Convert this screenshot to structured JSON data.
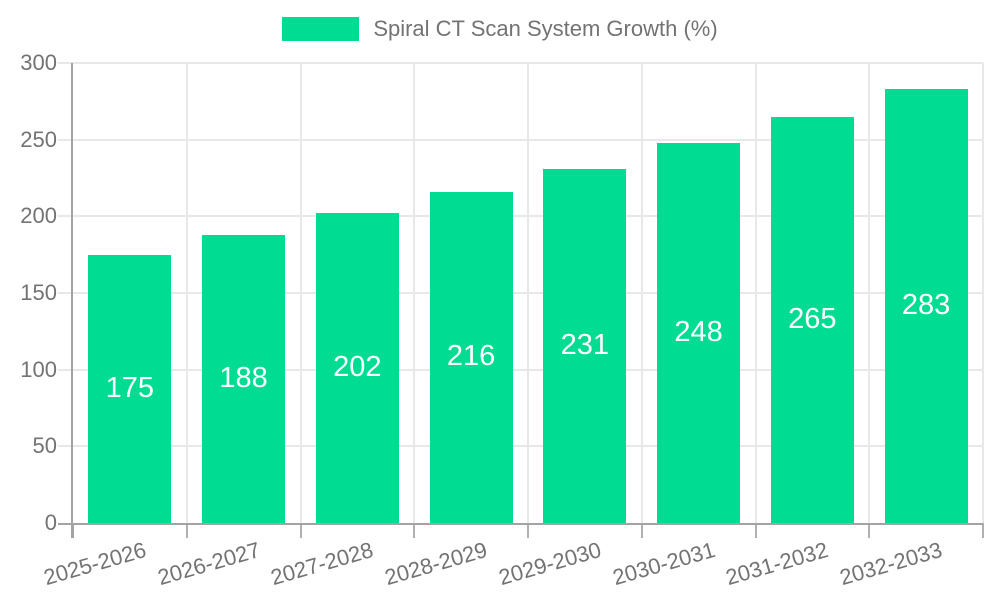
{
  "legend": {
    "label": "Spiral CT Scan System Growth (%)"
  },
  "colors": {
    "bar": "#00DC92",
    "axis_text": "#737373",
    "grid": "#e8e8e8",
    "axis_line": "#a3a3a3",
    "tick": "#b0b0b0",
    "value_label": "#ffffff",
    "background": "#ffffff"
  },
  "chart_data": {
    "type": "bar",
    "title": "",
    "legend_label": "Spiral CT Scan System Growth (%)",
    "legend_position": "top-center",
    "categories": [
      "2025-2026",
      "2026-2027",
      "2027-2028",
      "2028-2029",
      "2029-2030",
      "2030-2031",
      "2031-2032",
      "2032-2033"
    ],
    "values": [
      175,
      188,
      202,
      216,
      231,
      248,
      265,
      283
    ],
    "xlabel": "",
    "ylabel": "",
    "ylim": [
      0,
      300
    ],
    "yticks": [
      0,
      50,
      100,
      150,
      200,
      250,
      300
    ],
    "grid": "on",
    "bar_value_labels": "inside-center",
    "x_label_rotation_deg": -16
  }
}
